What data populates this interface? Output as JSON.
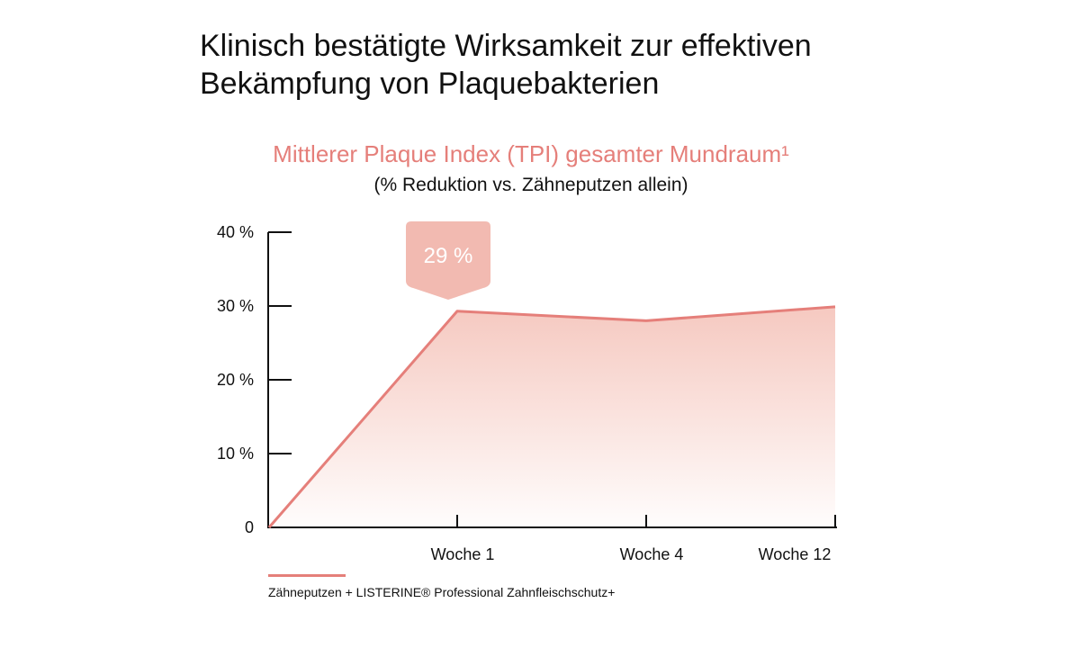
{
  "headline": {
    "line1": "Klinisch bestätigte Wirksamkeit zur effektiven",
    "line2": "Bekämpfung von Plaquebakterien"
  },
  "chart_data": {
    "type": "area",
    "title": "Mittlerer Plaque Index (TPI) gesamter Mundraum¹",
    "subtitle": "(% Reduktion vs. Zähneputzen allein)",
    "xlabel": "",
    "ylabel": "",
    "categories": [
      "",
      "Woche 1",
      "Woche 4",
      "Woche 12"
    ],
    "y_ticks": [
      0,
      10,
      20,
      30,
      40
    ],
    "y_tick_labels": [
      "0",
      "10 %",
      "20 %",
      "30 %",
      "40 %"
    ],
    "ylim": [
      0,
      40
    ],
    "grid": false,
    "series": [
      {
        "name": "Zähneputzen + LISTERINE® Professional Zahnfleischschutz+",
        "values": [
          0,
          29.3,
          28,
          29.9
        ],
        "color": "#e57f7a"
      }
    ],
    "annotations": [
      {
        "category": "Woche 1",
        "text": "29 %",
        "color": "#f2bab1"
      }
    ],
    "legend_placement": "bottom-left"
  }
}
